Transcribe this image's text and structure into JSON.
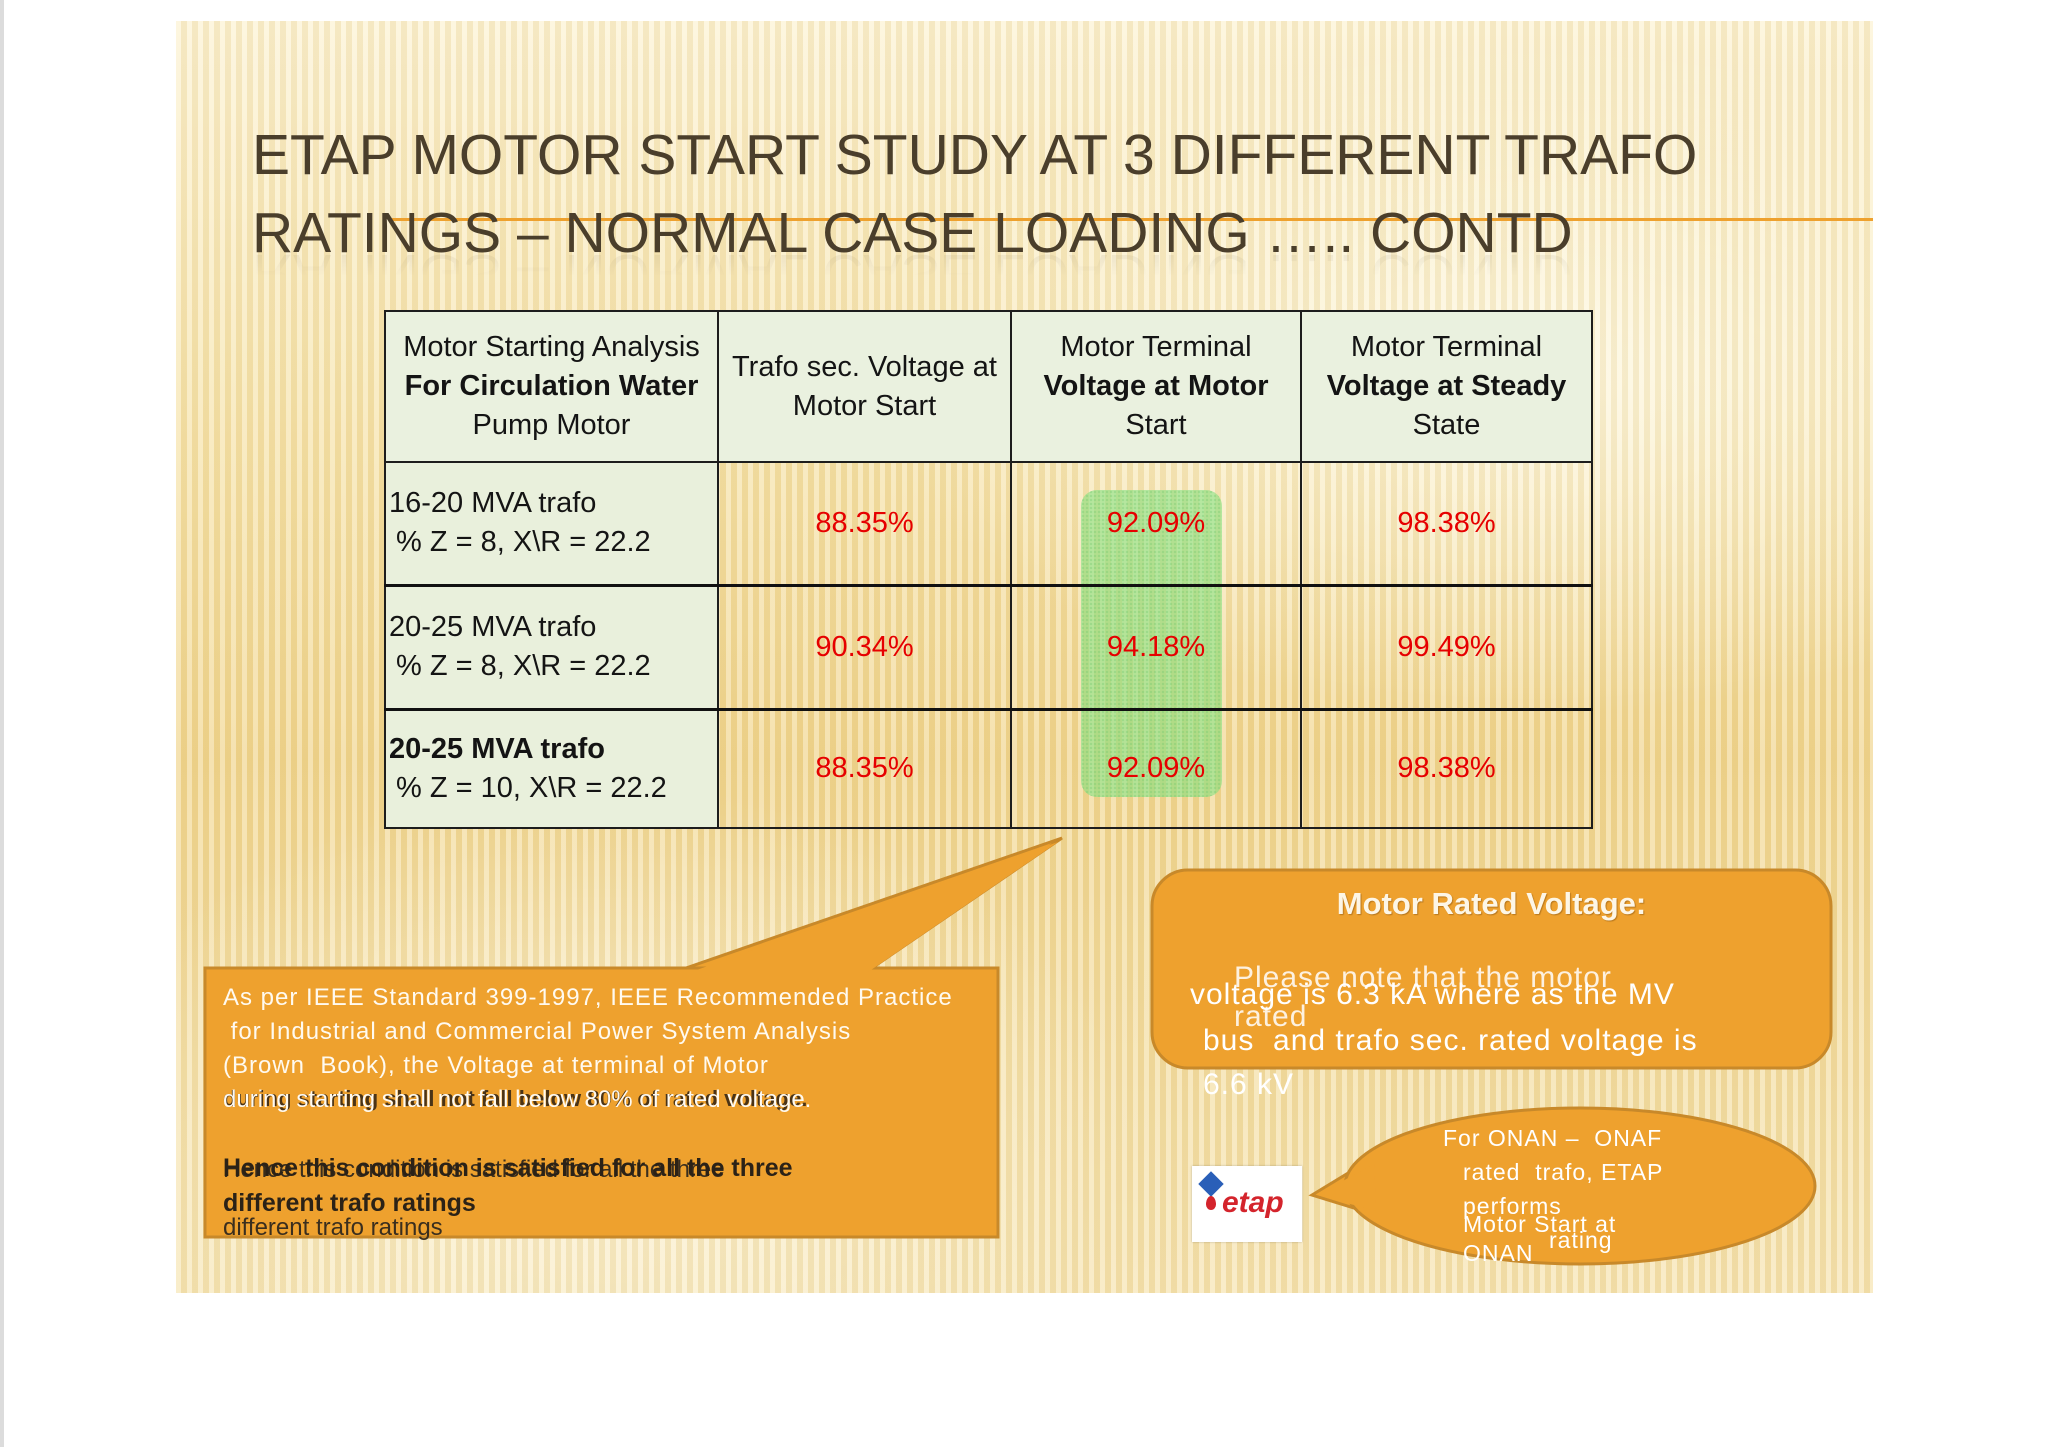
{
  "slide": {
    "title": {
      "line1": "ETAP MOTOR START STUDY AT 3 DIFFERENT TRAFO",
      "line2": "RATINGS – NORMAL CASE LOADING ….. CONTD"
    }
  },
  "table": {
    "headers": [
      {
        "line1": "Motor Starting Analysis",
        "line2": "For Circulation Water",
        "line3": "Pump Motor"
      },
      {
        "line1": "Trafo sec. Voltage at",
        "line2": "Motor Start"
      },
      {
        "line1": "Motor Terminal",
        "line2": "Voltage at Motor",
        "line3": "Start"
      },
      {
        "line1": "Motor Terminal",
        "line2": "Voltage at Steady",
        "line3": "State"
      }
    ],
    "rows": [
      {
        "rating": "16-20 MVA trafo",
        "impedance": "% Z = 8, X\\R = 22.2",
        "trafo_sec_voltage_at_start": "88.35%",
        "motor_terminal_voltage_at_start": "92.09%",
        "motor_terminal_voltage_steady": "98.38%"
      },
      {
        "rating": "20-25 MVA trafo",
        "impedance": "% Z = 8, X\\R = 22.2",
        "trafo_sec_voltage_at_start": "90.34%",
        "motor_terminal_voltage_at_start": "94.18%",
        "motor_terminal_voltage_steady": "99.49%"
      },
      {
        "rating": "20-25 MVA trafo",
        "impedance": "% Z = 10, X\\R = 22.2",
        "trafo_sec_voltage_at_start": "88.35%",
        "motor_terminal_voltage_at_start": "92.09%",
        "motor_terminal_voltage_steady": "98.38%"
      }
    ]
  },
  "callout_ieee": {
    "lines": [
      "As per IEEE Standard 399-1997, IEEE Recommended Practice",
      " for Industrial and Commercial Power System Analysis",
      "(Brown  Book), the Voltage at terminal of Motor",
      "during starting shall not fall below 80% of rated voltage."
    ],
    "conclusion": [
      "Hence this condition is satisfied for all the three",
      "different trafo ratings"
    ]
  },
  "callout_rated_voltage": {
    "title": "Motor Rated Voltage:",
    "lines": [
      "Please note that the motor",
      "rated",
      "voltage is 6.3 kA where as the MV",
      "bus  and trafo sec. rated voltage is",
      "6.6 kV"
    ]
  },
  "callout_onan": {
    "lines": [
      "For ONAN –  ONAF",
      "rated  trafo, ETAP",
      "performs",
      "Motor Start at",
      "rating",
      "ONAN"
    ]
  },
  "logo": {
    "text": "etap",
    "icon": "etap-logo-icon"
  },
  "colors": {
    "title": "#4a3e2b",
    "title_rule": "#eea12e",
    "callout_fill": "#eea12e",
    "callout_border": "#c8892a",
    "value_text": "#e60000",
    "table_header_fill": "#eaf1df",
    "highlight": "#8ce284"
  }
}
